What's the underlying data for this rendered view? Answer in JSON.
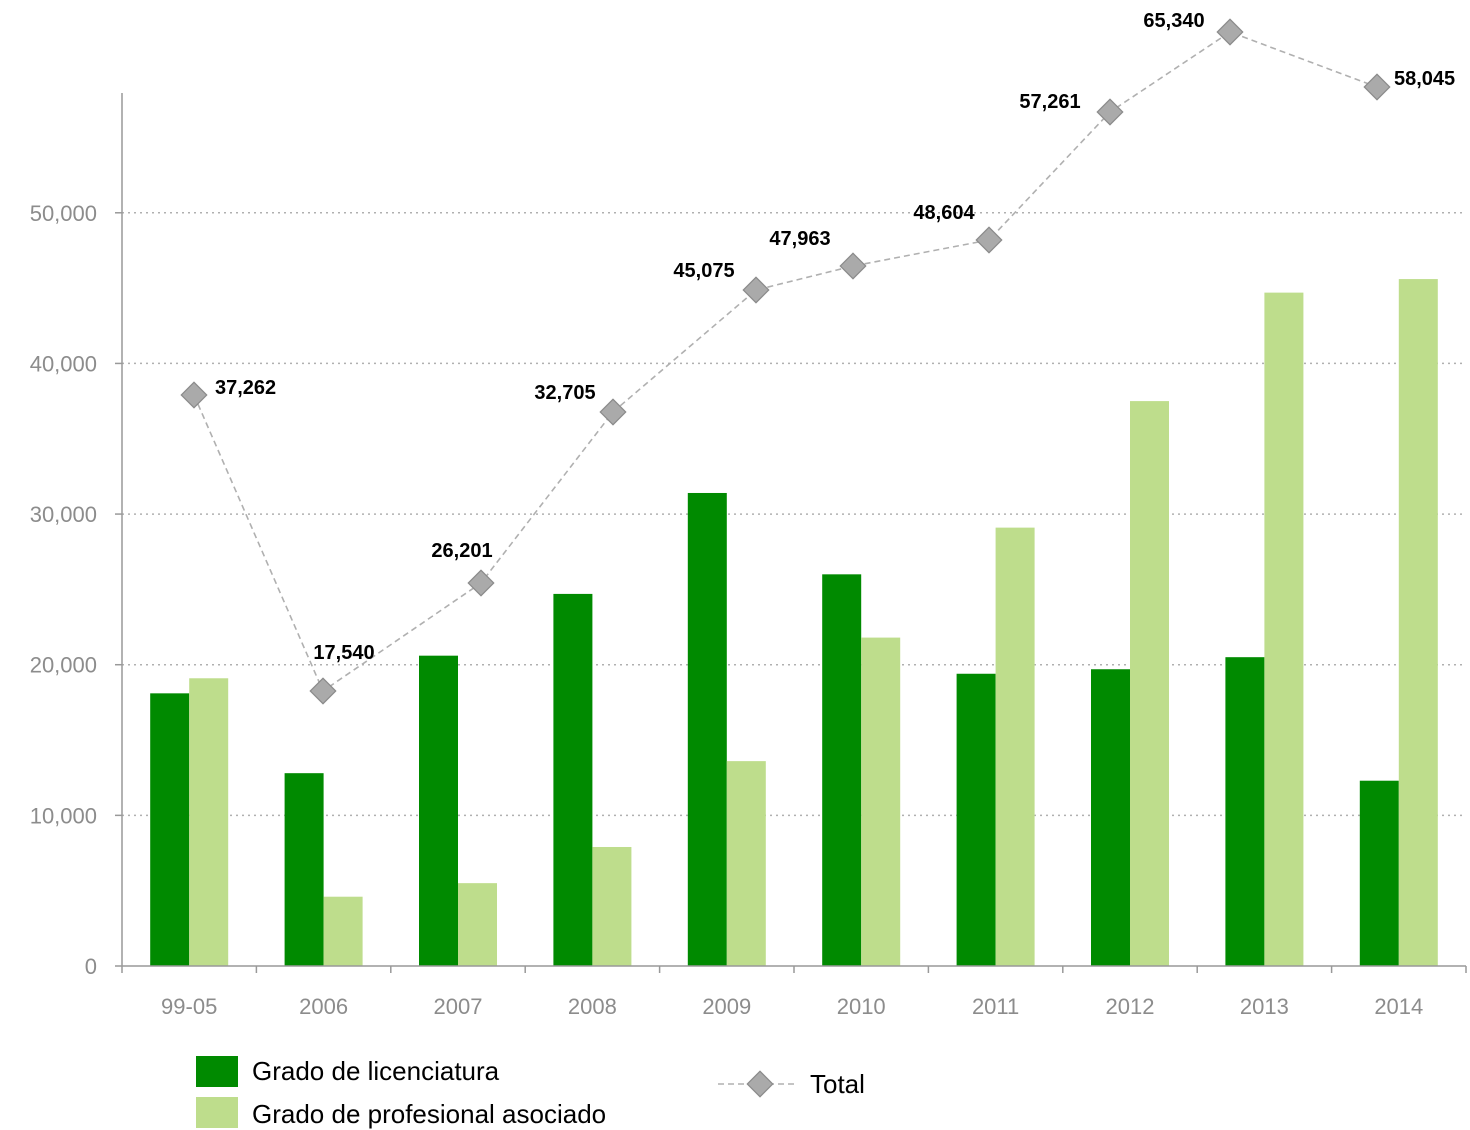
{
  "chart_data": {
    "type": "bar",
    "categories": [
      "99-05",
      "2006",
      "2007",
      "2008",
      "2009",
      "2010",
      "2011",
      "2012",
      "2013",
      "2014"
    ],
    "series": [
      {
        "name": "Grado de licenciatura",
        "type": "bar",
        "color": "#008a00",
        "values": [
          18100,
          12800,
          20600,
          24700,
          31400,
          26000,
          19400,
          19700,
          20500,
          12300
        ]
      },
      {
        "name": "Grado de profesional asociado",
        "type": "bar",
        "color": "#bedd8c",
        "values": [
          19100,
          4600,
          5500,
          7900,
          13600,
          21800,
          29100,
          37500,
          44700,
          45600
        ]
      },
      {
        "name": "Total",
        "type": "line",
        "color": "#aaaaaa",
        "values": [
          37262,
          17540,
          26201,
          32705,
          45075,
          47963,
          48604,
          57261,
          65340,
          58045
        ],
        "labels": [
          "37,262",
          "17,540",
          "26,201",
          "32,705",
          "45,075",
          "47,963",
          "48,604",
          "57,261",
          "65,340",
          "58,045"
        ]
      }
    ],
    "yticks": [
      "0",
      "10,000",
      "20,000",
      "30,000",
      "40,000",
      "50,000"
    ],
    "ylim": [
      0,
      58000
    ],
    "grid": true,
    "legend_position": "bottom"
  }
}
